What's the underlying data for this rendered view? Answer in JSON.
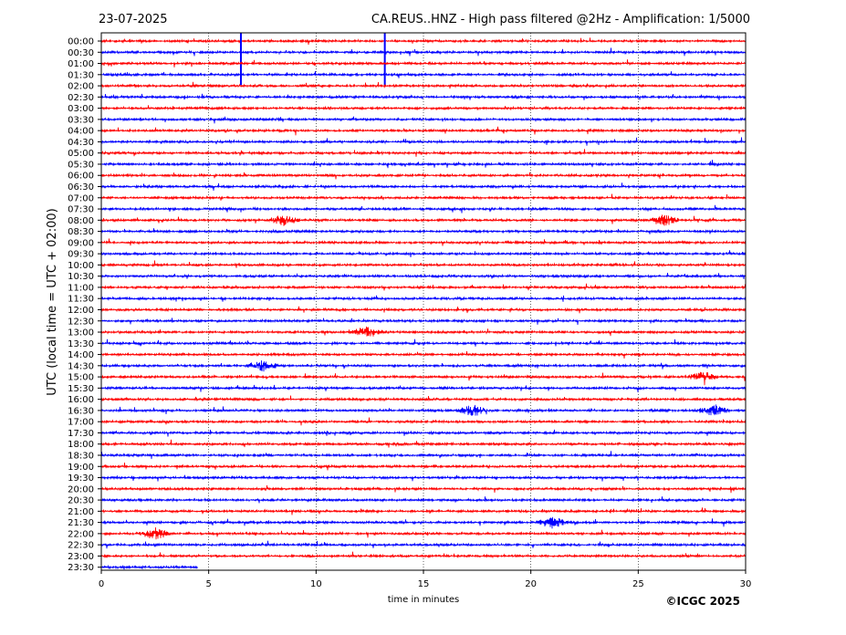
{
  "header": {
    "date": "23-07-2025",
    "title": "CA.REUS..HNZ - High pass filtered @2Hz - Amplification: 1/5000"
  },
  "footer": {
    "copyright": "©ICGC 2025"
  },
  "chart_data": {
    "type": "line",
    "title": "CA.REUS..HNZ - High pass filtered @2Hz - Amplification: 1/5000",
    "xlabel": "time in minutes",
    "ylabel": "UTC (local time = UTC + 02:00)",
    "xlim": [
      0,
      30
    ],
    "xticks": [
      "0",
      "5",
      "10",
      "15",
      "20",
      "25",
      "30"
    ],
    "grid": "vertical dotted at each 5 minutes",
    "trace_colors": [
      "#ff0000",
      "#0000ff"
    ],
    "rows": [
      "00:00",
      "00:30",
      "01:00",
      "01:30",
      "02:00",
      "02:30",
      "03:00",
      "03:30",
      "04:00",
      "04:30",
      "05:00",
      "05:30",
      "06:00",
      "06:30",
      "07:00",
      "07:30",
      "08:00",
      "08:30",
      "09:00",
      "09:30",
      "10:00",
      "10:30",
      "11:00",
      "11:30",
      "12:00",
      "12:30",
      "13:00",
      "13:30",
      "14:00",
      "14:30",
      "15:00",
      "15:30",
      "16:00",
      "16:30",
      "17:00",
      "17:30",
      "18:00",
      "18:30",
      "19:00",
      "19:30",
      "20:00",
      "20:30",
      "21:00",
      "21:30",
      "22:00",
      "22:30",
      "23:00",
      "23:30"
    ],
    "notable_events": [
      {
        "row": "00:30",
        "minute": 6.5,
        "note": "vertical spike"
      },
      {
        "row": "00:30",
        "minute": 13.2,
        "note": "vertical spike"
      },
      {
        "row": "08:00",
        "minute": 8.5,
        "note": "burst"
      },
      {
        "row": "08:00",
        "minute": 26.2,
        "note": "burst"
      },
      {
        "row": "13:00",
        "minute": 12.4,
        "note": "burst"
      },
      {
        "row": "14:30",
        "minute": 7.5,
        "note": "burst"
      },
      {
        "row": "15:00",
        "minute": 28.0,
        "note": "burst"
      },
      {
        "row": "16:30",
        "minute": 17.3,
        "note": "burst"
      },
      {
        "row": "16:30",
        "minute": 28.5,
        "note": "burst"
      },
      {
        "row": "21:30",
        "minute": 21.0,
        "note": "burst"
      },
      {
        "row": "22:00",
        "minute": 2.5,
        "note": "burst"
      }
    ]
  }
}
